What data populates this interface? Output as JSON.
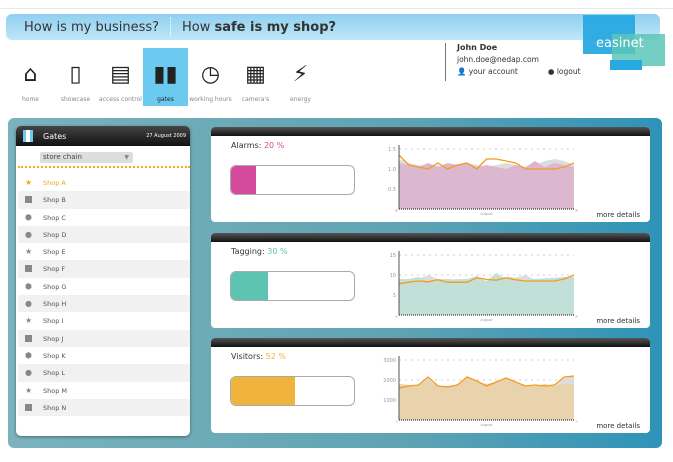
{
  "banner": {
    "q1": "How is my business?",
    "q2_prefix": "How ",
    "q2_bold": "safe is my shop?"
  },
  "logo": "easinet",
  "nav": [
    {
      "label": "home",
      "icon": "home-icon",
      "glyph": "⌂"
    },
    {
      "label": "showcase",
      "icon": "door-icon",
      "glyph": "▯"
    },
    {
      "label": "access control",
      "icon": "id-card-icon",
      "glyph": "▤"
    },
    {
      "label": "gates",
      "icon": "gates-icon",
      "glyph": "▮▮",
      "active": true
    },
    {
      "label": "working hours",
      "icon": "clock-icon",
      "glyph": "◷"
    },
    {
      "label": "camera's",
      "icon": "film-icon",
      "glyph": "▦"
    },
    {
      "label": "energy",
      "icon": "plug-icon",
      "glyph": "⚡"
    }
  ],
  "user": {
    "name": "John Doe",
    "email": "john.doe@nedap.com",
    "account": "your account",
    "logout": "logout"
  },
  "list": {
    "title": "Gates",
    "date": "27 August 2009",
    "select": "store chain",
    "shops": [
      {
        "name": "Shop A",
        "shape": "star",
        "active": true
      },
      {
        "name": "Shop B",
        "shape": "square"
      },
      {
        "name": "Shop C",
        "shape": "hexagon"
      },
      {
        "name": "Shop D",
        "shape": "circle"
      },
      {
        "name": "Shop E",
        "shape": "star"
      },
      {
        "name": "Shop F",
        "shape": "square"
      },
      {
        "name": "Shop G",
        "shape": "hexagon"
      },
      {
        "name": "Shop H",
        "shape": "circle"
      },
      {
        "name": "Shop I",
        "shape": "star"
      },
      {
        "name": "Shop J",
        "shape": "square"
      },
      {
        "name": "Shop K",
        "shape": "hexagon"
      },
      {
        "name": "Shop L",
        "shape": "circle"
      },
      {
        "name": "Shop M",
        "shape": "star"
      },
      {
        "name": "Shop N",
        "shape": "square"
      }
    ]
  },
  "cards": [
    {
      "label": "Alarms:",
      "value": "20 %",
      "percent": 20,
      "color": "#d44a9c",
      "area": "#dcb8d0",
      "more": "more details",
      "chart_data": {
        "type": "area",
        "xlabel": "August",
        "ylim": [
          0,
          1.5
        ],
        "yticks": [
          "1.5",
          "1.0",
          "0.5"
        ],
        "series": [
          {
            "values": [
              1.15,
              1.1,
              1.05,
              1.15,
              1.05,
              1.15,
              1.1,
              1.15,
              1.05,
              1.1,
              1.05,
              1.0,
              1.1,
              1.05,
              1.2,
              1.05,
              1.15,
              1.1,
              1.05
            ]
          },
          {
            "values": [
              1.25,
              1.15,
              1.1,
              1.05,
              1.1,
              1.0,
              1.05,
              1.15,
              1.1,
              1.05,
              1.1,
              1.15,
              1.1,
              1.05,
              1.1,
              1.2,
              1.25,
              1.2,
              1.1
            ]
          },
          {
            "values": [
              1.35,
              1.1,
              1.05,
              1.0,
              1.15,
              1.0,
              1.1,
              1.15,
              1.0,
              1.25,
              1.25,
              1.2,
              1.15,
              1.0,
              1.0,
              1.0,
              1.0,
              1.05,
              1.15
            ]
          }
        ]
      }
    },
    {
      "label": "Tagging:",
      "value": "30 %",
      "percent": 30,
      "color": "#5cc4b0",
      "area": "#c3e0d8",
      "more": "more details",
      "chart_data": {
        "type": "area",
        "xlabel": "August",
        "ylim": [
          0,
          15
        ],
        "yticks": [
          "15",
          "10",
          "5"
        ],
        "series": [
          {
            "values": [
              9,
              9,
              9.5,
              8.5,
              9,
              9,
              8.8,
              9,
              9.3,
              8.5,
              10.5,
              9,
              9,
              8.7,
              9,
              9.2,
              9.3,
              9.5,
              9.5
            ]
          },
          {
            "values": [
              8.5,
              8.8,
              9,
              10,
              9,
              8.8,
              9,
              9,
              9.8,
              8,
              9,
              9.5,
              9.3,
              10,
              8.8,
              9,
              8.5,
              9,
              9.3
            ]
          },
          {
            "values": [
              7.8,
              8.2,
              8.5,
              8.3,
              8.8,
              8.2,
              8.2,
              8.2,
              9.3,
              8.9,
              8.7,
              9.3,
              8.8,
              8.5,
              8.5,
              8.5,
              8.5,
              9,
              10
            ]
          }
        ]
      }
    },
    {
      "label": "Visitors:",
      "value": "52 %",
      "percent": 52,
      "color": "#f0b43c",
      "area": "#e8d3ad",
      "more": "more details",
      "chart_data": {
        "type": "area",
        "xlabel": "August",
        "ylim": [
          0,
          3000
        ],
        "yticks": [
          "3000",
          "2000",
          "1000"
        ],
        "series": [
          {
            "values": [
              1800,
              1750,
              1700,
              2000,
              1700,
              1700,
              1750,
              2200,
              1900,
              1800,
              1900,
              2100,
              1900,
              1750,
              1700,
              1800,
              1700,
              1800,
              1800
            ]
          },
          {
            "values": [
              1800,
              1750,
              1750,
              2100,
              1600,
              1700,
              1700,
              2100,
              2000,
              1300,
              1800,
              2000,
              1900,
              1700,
              1600,
              1700,
              1700,
              2100,
              2200
            ]
          },
          {
            "values": [
              1600,
              1700,
              1750,
              2150,
              1700,
              1650,
              1750,
              2150,
              1950,
              1700,
              1900,
              2100,
              1900,
              1700,
              1750,
              1700,
              1750,
              2150,
              2200
            ]
          }
        ]
      }
    }
  ]
}
